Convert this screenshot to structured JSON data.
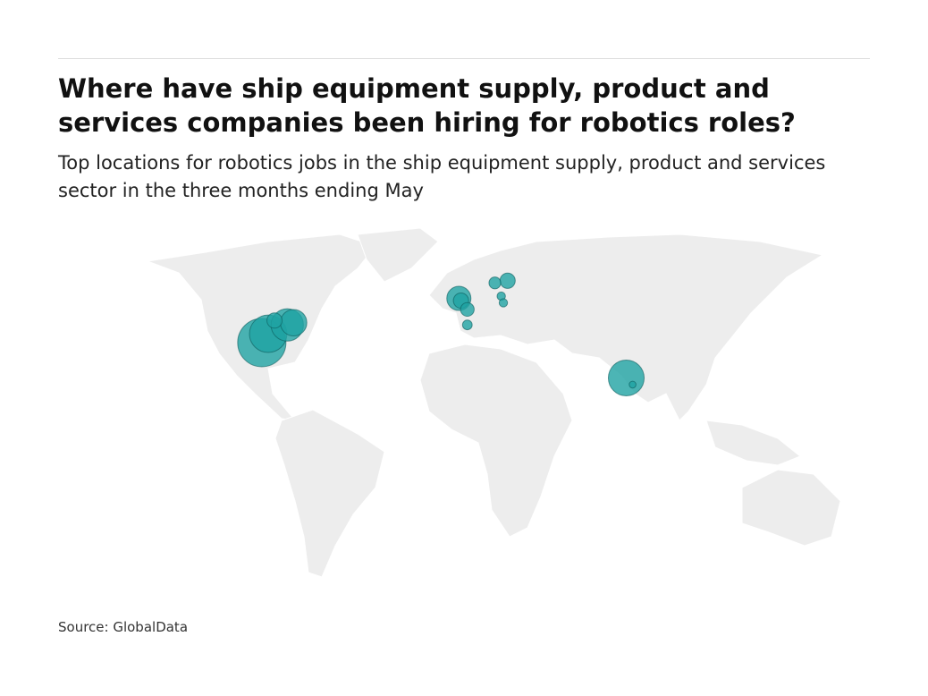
{
  "header": {
    "title": "Where have ship equipment supply, product and services companies been hiring for robotics roles?",
    "subtitle": "Top locations for robotics jobs in the ship equipment supply, product and services sector in the three months ending May"
  },
  "map": {
    "color": "#1fa3a3",
    "points": [
      {
        "lon": -95,
        "lat": 32,
        "value": 100
      },
      {
        "lon": -92,
        "lat": 36,
        "value": 60
      },
      {
        "lon": -83,
        "lat": 40,
        "value": 45
      },
      {
        "lon": -80,
        "lat": 41,
        "value": 30
      },
      {
        "lon": -89,
        "lat": 42,
        "value": 10
      },
      {
        "lon": -2,
        "lat": 52,
        "value": 25
      },
      {
        "lon": -1,
        "lat": 51,
        "value": 10
      },
      {
        "lon": 2,
        "lat": 47,
        "value": 8
      },
      {
        "lon": 2,
        "lat": 40,
        "value": 4
      },
      {
        "lon": 15,
        "lat": 59,
        "value": 6
      },
      {
        "lon": 21,
        "lat": 60,
        "value": 10
      },
      {
        "lon": 18,
        "lat": 53,
        "value": 3
      },
      {
        "lon": 19,
        "lat": 50,
        "value": 3
      },
      {
        "lon": 77,
        "lat": 16,
        "value": 55
      },
      {
        "lon": 80,
        "lat": 13,
        "value": 2
      }
    ]
  },
  "footer": {
    "source": "Source: GlobalData"
  }
}
